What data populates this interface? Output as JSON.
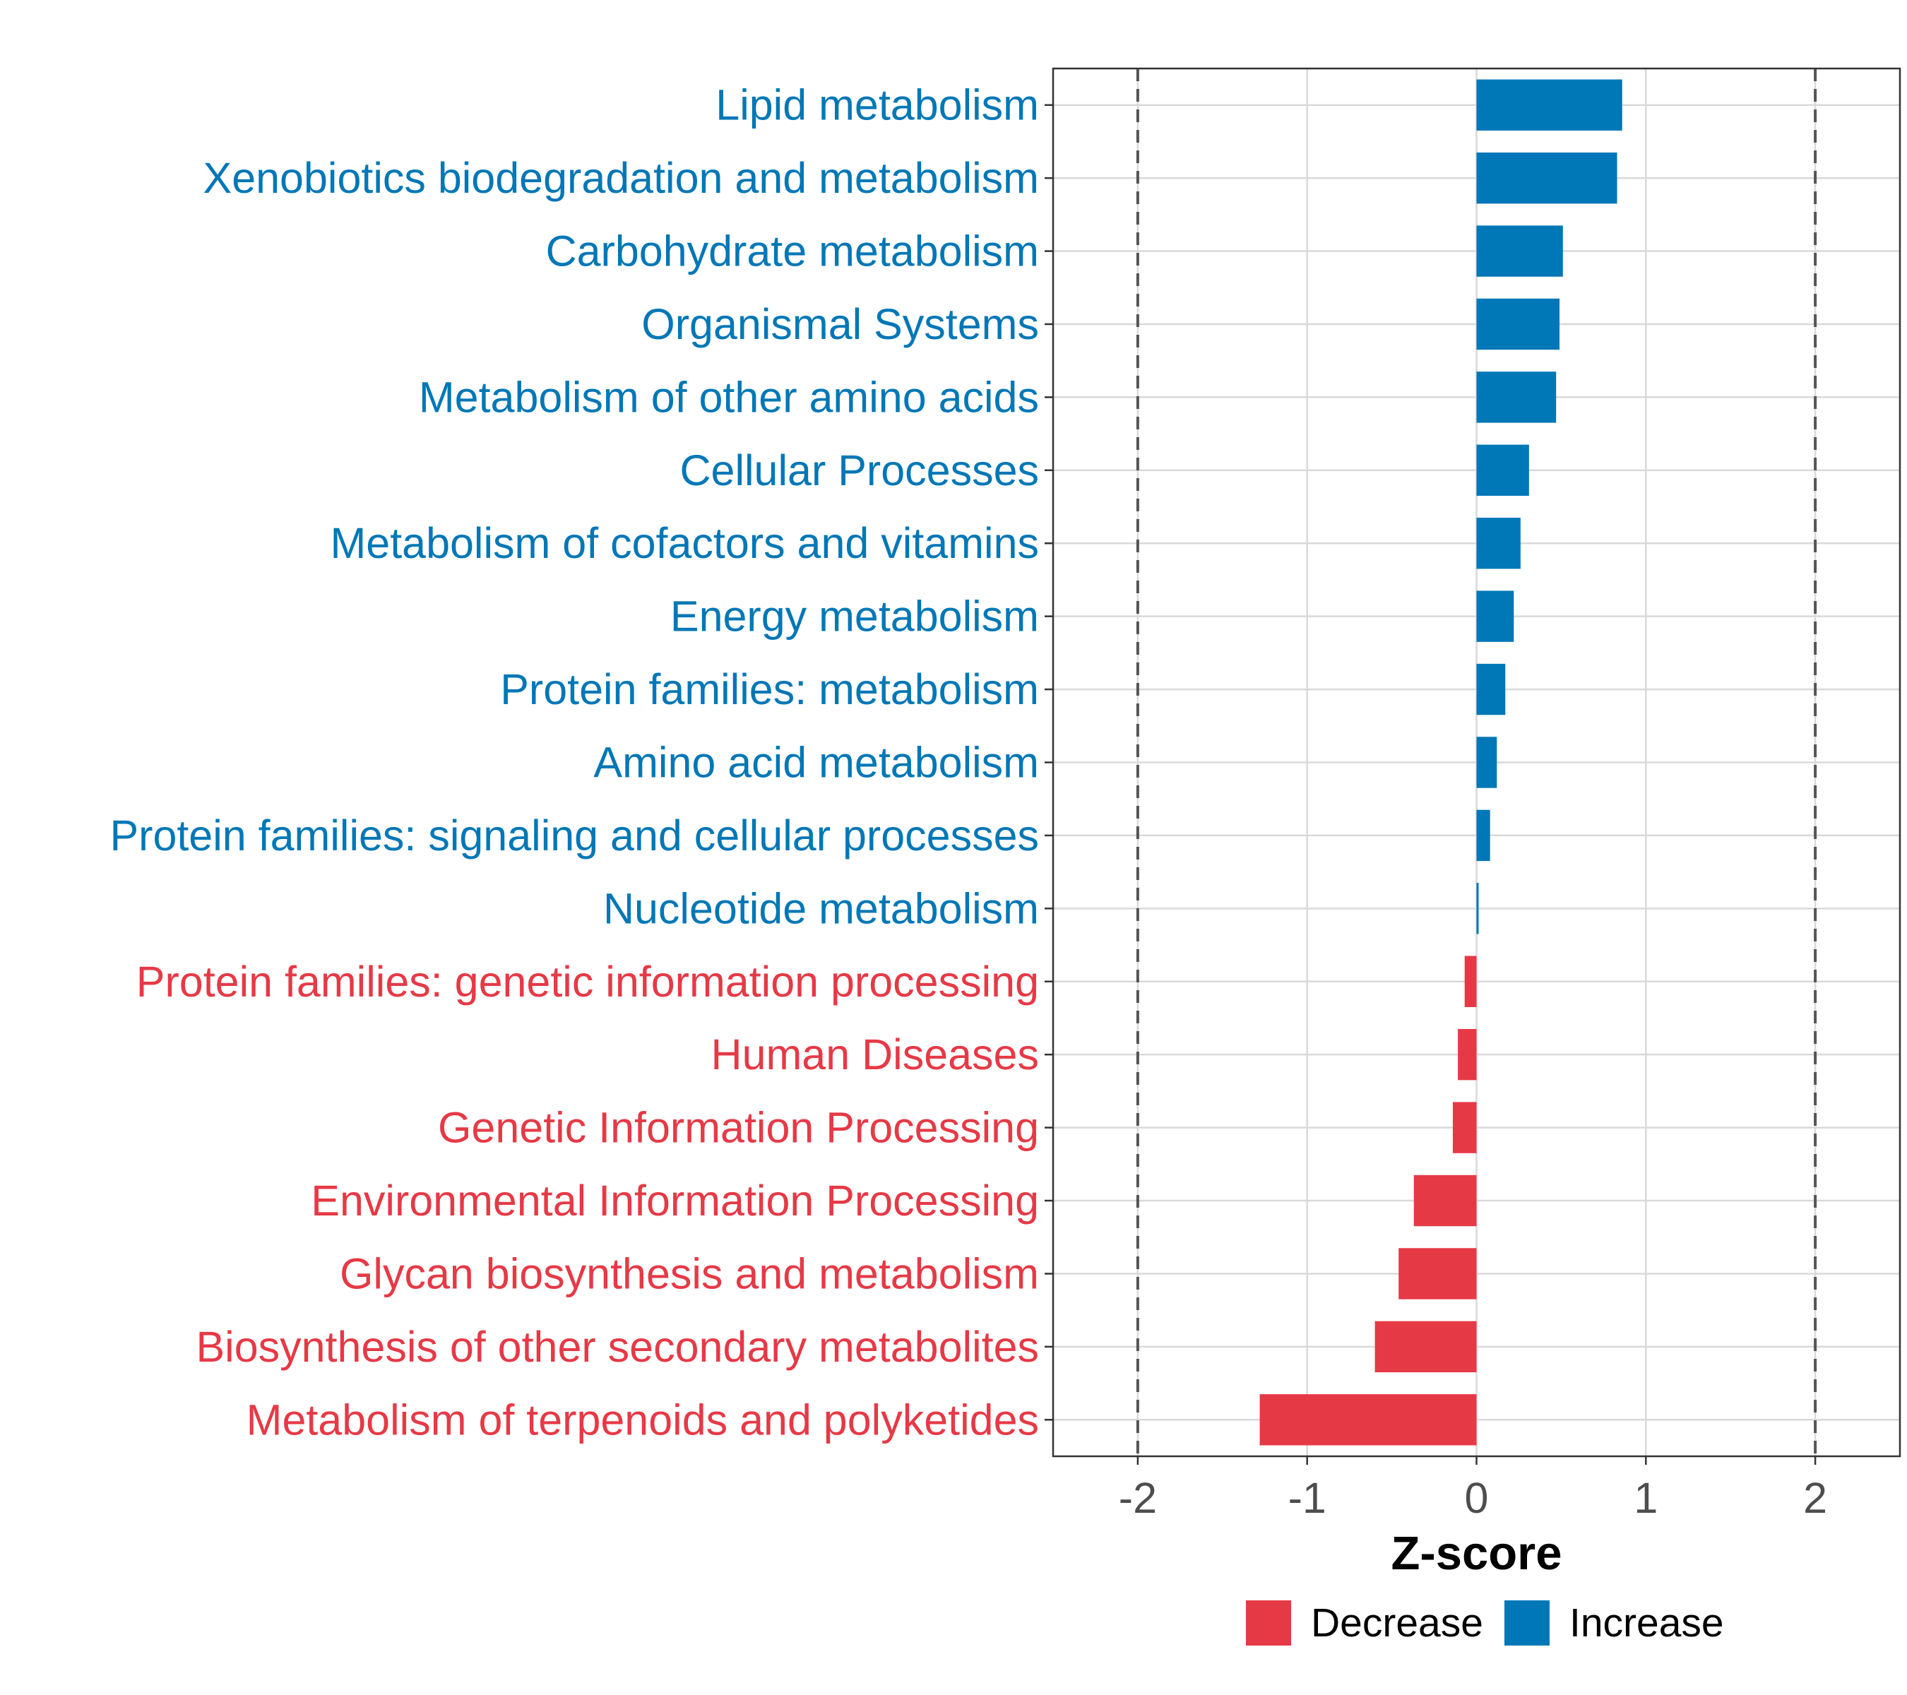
{
  "chart_data": {
    "type": "bar",
    "orientation": "horizontal",
    "xlabel": "Z-score",
    "ylabel": "",
    "xlim": [
      -2.5,
      2.5
    ],
    "xticks": [
      -2,
      -1,
      0,
      1,
      2
    ],
    "tick_labels": [
      "-2",
      "-1",
      "0",
      "1",
      "2"
    ],
    "reference_lines": [
      -2,
      2
    ],
    "grid": true,
    "legend": {
      "placement": "bottom",
      "items": [
        {
          "label": "Decrease",
          "color": "#E63946"
        },
        {
          "label": "Increase",
          "color": "#0077B6"
        }
      ]
    },
    "categories": [
      "Lipid metabolism",
      "Xenobiotics biodegradation and metabolism",
      "Carbohydrate metabolism",
      "Organismal Systems",
      "Metabolism of other amino acids",
      "Cellular Processes",
      "Metabolism of cofactors and vitamins",
      "Energy metabolism",
      "Protein families: metabolism",
      "Amino acid metabolism",
      "Protein families: signaling and cellular processes",
      "Nucleotide metabolism",
      "Protein families: genetic information processing",
      "Human Diseases",
      "Genetic Information Processing",
      "Environmental Information Processing",
      "Glycan biosynthesis and metabolism",
      "Biosynthesis of other secondary metabolites",
      "Metabolism of terpenoids and polyketides"
    ],
    "values": [
      0.86,
      0.83,
      0.51,
      0.49,
      0.47,
      0.31,
      0.26,
      0.22,
      0.17,
      0.12,
      0.08,
      0.01,
      -0.07,
      -0.11,
      -0.14,
      -0.37,
      -0.46,
      -0.6,
      -1.28
    ],
    "groups": [
      "Increase",
      "Increase",
      "Increase",
      "Increase",
      "Increase",
      "Increase",
      "Increase",
      "Increase",
      "Increase",
      "Increase",
      "Increase",
      "Increase",
      "Decrease",
      "Decrease",
      "Decrease",
      "Decrease",
      "Decrease",
      "Decrease",
      "Decrease"
    ]
  }
}
